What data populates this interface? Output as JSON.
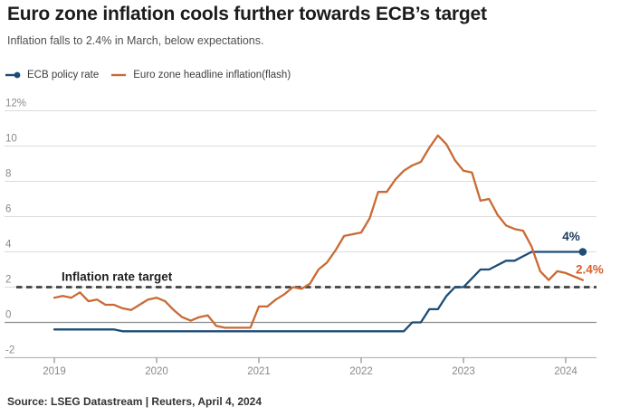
{
  "header": {
    "title": "Euro zone inflation cools further towards ECB’s target",
    "subtitle": "Inflation falls to 2.4% in March, below expectations."
  },
  "legend": [
    {
      "label": "ECB policy rate",
      "color": "#1c4c77",
      "marker": "line-dot"
    },
    {
      "label": "Euro zone headline inflation(flash)",
      "color": "#c96a34",
      "marker": "line"
    }
  ],
  "source": "Source: LSEG Datastream | Reuters, April 4, 2024",
  "colors": {
    "policy_blue": "#1c4c77",
    "inflation_orange": "#c96a34",
    "annotation_blue": "#1b3a5c",
    "annotation_orange": "#d95f2a",
    "gridline": "#dcdcdc",
    "zero_line": "#8c8c8c",
    "axis_line": "#bbbbbb",
    "target_dash": "#404040",
    "tick_label": "#8a8a8a"
  },
  "chart_data": {
    "type": "line",
    "title": "Euro zone inflation vs ECB policy rate",
    "x_unit": "month",
    "x_start": "2019-01",
    "x_end": "2024-03",
    "x_tick_labels": [
      "2019",
      "2020",
      "2021",
      "2022",
      "2023",
      "2024"
    ],
    "y_ticks": [
      12,
      10,
      8,
      6,
      4,
      2,
      0,
      -2
    ],
    "y_tick_labels": [
      "12%",
      "10",
      "8",
      "6",
      "4",
      "2",
      "0",
      "-2"
    ],
    "ylim": [
      -2,
      12
    ],
    "grid": true,
    "legend_position": "top-left",
    "target_line": {
      "value": 2,
      "label": "Inflation rate target",
      "style": "dashed"
    },
    "annotations": [
      {
        "text": "4%",
        "series": "ECB policy rate",
        "color": "#1b3a5c"
      },
      {
        "text": "2.4%",
        "series": "Euro zone headline inflation(flash)",
        "color": "#d95f2a"
      }
    ],
    "series": [
      {
        "name": "ECB policy rate",
        "color": "#1c4c77",
        "end_marker": "dot",
        "values": [
          -0.4,
          -0.4,
          -0.4,
          -0.4,
          -0.4,
          -0.4,
          -0.4,
          -0.4,
          -0.5,
          -0.5,
          -0.5,
          -0.5,
          -0.5,
          -0.5,
          -0.5,
          -0.5,
          -0.5,
          -0.5,
          -0.5,
          -0.5,
          -0.5,
          -0.5,
          -0.5,
          -0.5,
          -0.5,
          -0.5,
          -0.5,
          -0.5,
          -0.5,
          -0.5,
          -0.5,
          -0.5,
          -0.5,
          -0.5,
          -0.5,
          -0.5,
          -0.5,
          -0.5,
          -0.5,
          -0.5,
          -0.5,
          -0.5,
          0.0,
          0.0,
          0.75,
          0.75,
          1.5,
          2.0,
          2.0,
          2.5,
          3.0,
          3.0,
          3.25,
          3.5,
          3.5,
          3.75,
          4.0,
          4.0,
          4.0,
          4.0,
          4.0,
          4.0,
          4.0
        ]
      },
      {
        "name": "Euro zone headline inflation(flash)",
        "color": "#c96a34",
        "end_marker": "none",
        "values": [
          1.4,
          1.5,
          1.4,
          1.7,
          1.2,
          1.3,
          1.0,
          1.0,
          0.8,
          0.7,
          1.0,
          1.3,
          1.4,
          1.2,
          0.7,
          0.3,
          0.1,
          0.3,
          0.4,
          -0.2,
          -0.3,
          -0.3,
          -0.3,
          -0.3,
          0.9,
          0.9,
          1.3,
          1.6,
          2.0,
          1.9,
          2.2,
          3.0,
          3.4,
          4.1,
          4.9,
          5.0,
          5.1,
          5.9,
          7.4,
          7.4,
          8.1,
          8.6,
          8.9,
          9.1,
          9.9,
          10.6,
          10.1,
          9.2,
          8.6,
          8.5,
          6.9,
          7.0,
          6.1,
          5.5,
          5.3,
          5.2,
          4.3,
          2.9,
          2.4,
          2.9,
          2.8,
          2.6,
          2.4
        ]
      }
    ]
  }
}
